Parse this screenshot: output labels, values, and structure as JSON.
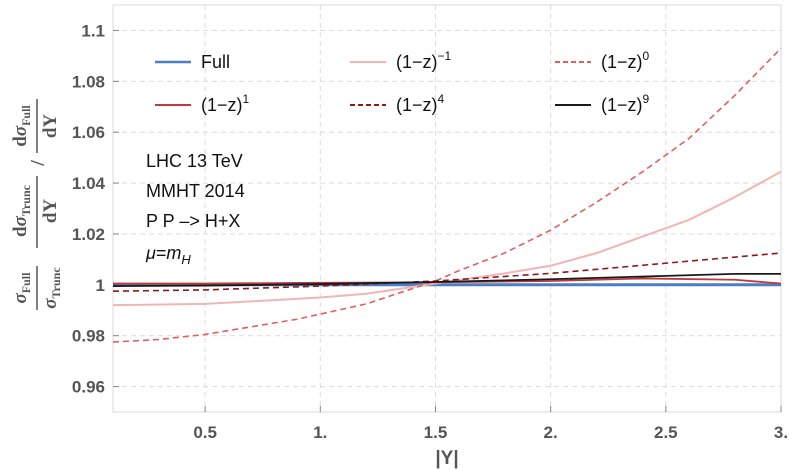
{
  "chart_data": {
    "type": "line",
    "xlabel": "|Y|",
    "ylabel": {
      "full": "σFull",
      "trunc": "σTrunc",
      "dfull": "dσFull",
      "dtrunc": "dσTrunc",
      "dY": "dY"
    },
    "xlim": [
      0.1,
      3.0
    ],
    "ylim": [
      0.95,
      1.11
    ],
    "xticks": [
      0.5,
      1.0,
      1.5,
      2.0,
      2.5,
      3.0
    ],
    "xtick_labels": [
      "0.5",
      "1.",
      "1.5",
      "2.",
      "2.5",
      "3."
    ],
    "yticks": [
      0.96,
      0.98,
      1.0,
      1.02,
      1.04,
      1.06,
      1.08,
      1.1
    ],
    "ytick_labels": [
      "0.96",
      "0.98",
      "1",
      "1.02",
      "1.04",
      "1.06",
      "1.08",
      "1.1"
    ],
    "grid": true,
    "legend_placement": "top",
    "annotations": [
      "LHC 13 TeV",
      "MMHT 2014",
      "P P –> H+X",
      "μ=m_H"
    ],
    "series": [
      {
        "name": "Full",
        "label_base": "Full",
        "label_exp": "",
        "color": "#4a7fc4",
        "dash": "solid",
        "width": 3,
        "x": [
          0.1,
          3.0
        ],
        "y": [
          1.0,
          1.0
        ]
      },
      {
        "name": "(1−z)^−1",
        "label_base": "(1−z)",
        "label_exp": "−1",
        "color": "#f0b6b6",
        "dash": "solid",
        "width": 2,
        "x": [
          0.1,
          0.5,
          1.0,
          1.2,
          1.5,
          1.8,
          2.0,
          2.2,
          2.4,
          2.6,
          2.8,
          3.0
        ],
        "y": [
          0.992,
          0.9925,
          0.995,
          0.9965,
          1.0005,
          1.0045,
          1.0075,
          1.0125,
          1.019,
          1.0255,
          1.0345,
          1.0445
        ]
      },
      {
        "name": "(1−z)^0",
        "label_base": "(1−z)",
        "label_exp": "0",
        "color": "#e06060",
        "dash": "dashed",
        "width": 1.6,
        "x": [
          0.1,
          0.3,
          0.5,
          0.7,
          0.9,
          1.0,
          1.2,
          1.4,
          1.5,
          1.6,
          1.8,
          2.0,
          2.2,
          2.4,
          2.6,
          2.8,
          3.0
        ],
        "y": [
          0.9775,
          0.9785,
          0.9805,
          0.9835,
          0.9865,
          0.9885,
          0.9925,
          0.9985,
          1.0015,
          1.0055,
          1.0125,
          1.0215,
          1.0325,
          1.0445,
          1.0575,
          1.0745,
          1.093
        ]
      },
      {
        "name": "(1−z)^1",
        "label_base": "(1−z)",
        "label_exp": "1",
        "color": "#c0393b",
        "dash": "solid",
        "width": 1.8,
        "x": [
          0.1,
          0.5,
          1.0,
          1.5,
          2.0,
          2.4,
          2.8,
          3.0
        ],
        "y": [
          1.0005,
          1.0005,
          1.0008,
          1.001,
          1.0015,
          1.0025,
          1.002,
          1.0005
        ]
      },
      {
        "name": "(1−z)^4",
        "label_base": "(1−z)",
        "label_exp": "4",
        "color": "#8b1a1a",
        "dash": "dashed",
        "width": 1.6,
        "x": [
          0.1,
          0.5,
          1.0,
          1.5,
          2.0,
          2.5,
          3.0
        ],
        "y": [
          0.9975,
          0.998,
          0.9995,
          1.0015,
          1.0045,
          1.0085,
          1.0125
        ]
      },
      {
        "name": "(1−z)^9",
        "label_base": "(1−z)",
        "label_exp": "9",
        "color": "#1a1a1a",
        "dash": "solid",
        "width": 1.8,
        "x": [
          0.1,
          0.5,
          1.0,
          1.5,
          2.0,
          2.5,
          2.8,
          3.0
        ],
        "y": [
          0.9995,
          0.9997,
          1.0003,
          1.0011,
          1.0022,
          1.0035,
          1.0043,
          1.0043
        ]
      }
    ]
  }
}
